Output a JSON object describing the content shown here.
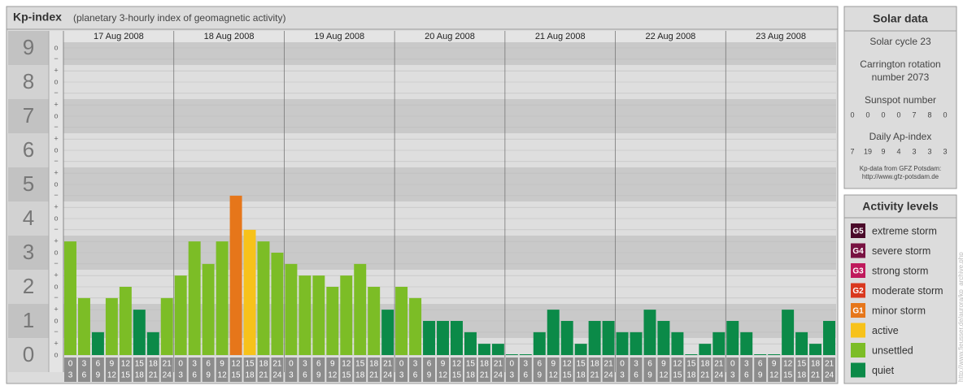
{
  "chart_data": {
    "type": "bar",
    "title": "Kp-index",
    "subtitle": "(planetary 3-hourly index of geomagnetic activity)",
    "days": [
      "17 Aug 2008",
      "18 Aug 2008",
      "19 Aug 2008",
      "20 Aug 2008",
      "21 Aug 2008",
      "22 Aug 2008",
      "23 Aug 2008"
    ],
    "slots": [
      {
        "from": "0",
        "to": "3"
      },
      {
        "from": "3",
        "to": "6"
      },
      {
        "from": "6",
        "to": "9"
      },
      {
        "from": "9",
        "to": "12"
      },
      {
        "from": "12",
        "to": "15"
      },
      {
        "from": "15",
        "to": "18"
      },
      {
        "from": "18",
        "to": "21"
      },
      {
        "from": "21",
        "to": "24"
      }
    ],
    "values": [
      3.33,
      1.67,
      0.67,
      1.67,
      2,
      1.33,
      0.67,
      1.67,
      2.33,
      3.33,
      2.67,
      3.33,
      4.67,
      3.67,
      3.33,
      3,
      2.67,
      2.33,
      2.33,
      2,
      2.33,
      2.67,
      2,
      1.33,
      2,
      1.67,
      1,
      1,
      1,
      0.67,
      0.33,
      0.33,
      0,
      0,
      0.67,
      1.33,
      1,
      0.33,
      1,
      1,
      0.67,
      0.67,
      1.33,
      1,
      0.67,
      0,
      0.33,
      0.67,
      1,
      0.67,
      0,
      0,
      1.33,
      0.67,
      0.33,
      1
    ],
    "colors": [
      "#7cbd26",
      "#7cbd26",
      "#0b8a48",
      "#7cbd26",
      "#7cbd26",
      "#0b8a48",
      "#0b8a48",
      "#7cbd26",
      "#7cbd26",
      "#7cbd26",
      "#7cbd26",
      "#7cbd26",
      "#e6761a",
      "#f7c21a",
      "#7cbd26",
      "#7cbd26",
      "#7cbd26",
      "#7cbd26",
      "#7cbd26",
      "#7cbd26",
      "#7cbd26",
      "#7cbd26",
      "#7cbd26",
      "#0b8a48",
      "#7cbd26",
      "#7cbd26",
      "#0b8a48",
      "#0b8a48",
      "#0b8a48",
      "#0b8a48",
      "#0b8a48",
      "#0b8a48",
      "#0b8a48",
      "#0b8a48",
      "#0b8a48",
      "#0b8a48",
      "#0b8a48",
      "#0b8a48",
      "#0b8a48",
      "#0b8a48",
      "#0b8a48",
      "#0b8a48",
      "#0b8a48",
      "#0b8a48",
      "#0b8a48",
      "#0b8a48",
      "#0b8a48",
      "#0b8a48",
      "#0b8a48",
      "#0b8a48",
      "#0b8a48",
      "#0b8a48",
      "#0b8a48",
      "#0b8a48",
      "#0b8a48",
      "#0b8a48"
    ],
    "ylim": [
      -0.5,
      9.5
    ],
    "yticks": [
      0,
      1,
      2,
      3,
      4,
      5,
      6,
      7,
      8,
      9
    ],
    "minor_yticks": [
      {
        "value": 0,
        "label": "o"
      },
      {
        "value": 0.33,
        "label": "+"
      },
      {
        "value": 0.67,
        "label": "−"
      },
      {
        "value": 1,
        "label": "o"
      },
      {
        "value": 1.33,
        "label": "+"
      },
      {
        "value": 1.67,
        "label": "−"
      },
      {
        "value": 2,
        "label": "o"
      },
      {
        "value": 2.33,
        "label": "+"
      },
      {
        "value": 2.67,
        "label": "−"
      },
      {
        "value": 3,
        "label": "o"
      },
      {
        "value": 3.33,
        "label": "+"
      },
      {
        "value": 3.67,
        "label": "−"
      },
      {
        "value": 4,
        "label": "o"
      },
      {
        "value": 4.33,
        "label": "+"
      },
      {
        "value": 4.67,
        "label": "−"
      },
      {
        "value": 5,
        "label": "o"
      },
      {
        "value": 5.33,
        "label": "+"
      },
      {
        "value": 5.67,
        "label": "−"
      },
      {
        "value": 6,
        "label": "o"
      },
      {
        "value": 6.33,
        "label": "+"
      },
      {
        "value": 6.67,
        "label": "−"
      },
      {
        "value": 7,
        "label": "o"
      },
      {
        "value": 7.33,
        "label": "+"
      },
      {
        "value": 7.67,
        "label": "−"
      },
      {
        "value": 8,
        "label": "o"
      },
      {
        "value": 8.33,
        "label": "+"
      },
      {
        "value": 8.67,
        "label": "−"
      },
      {
        "value": 9,
        "label": "o"
      }
    ],
    "grid": true
  },
  "solar_data": {
    "title": "Solar data",
    "solar_cycle": "Solar cycle 23",
    "carrington": [
      "Carrington rotation",
      "number 2073"
    ],
    "sunspot_title": "Sunspot number",
    "sunspot_numbers": [
      0,
      0,
      0,
      0,
      7,
      8,
      0
    ],
    "ap_title": "Daily Ap-index",
    "ap_values": [
      7,
      19,
      9,
      4,
      3,
      3,
      3
    ],
    "credit": [
      "Kp-data from GFZ Potsdam:",
      "http://www.gfz-potsdam.de"
    ]
  },
  "activity_levels": {
    "title": "Activity levels",
    "items": [
      {
        "code": "G5",
        "label": "extreme storm",
        "color": "#4a0a2a"
      },
      {
        "code": "G4",
        "label": "severe storm",
        "color": "#781242"
      },
      {
        "code": "G3",
        "label": "strong storm",
        "color": "#bf1a5c"
      },
      {
        "code": "G2",
        "label": "moderate storm",
        "color": "#d9381e"
      },
      {
        "code": "G1",
        "label": "minor storm",
        "color": "#e6761a"
      },
      {
        "code": null,
        "label": "active",
        "color": "#f7c21a"
      },
      {
        "code": null,
        "label": "unsettled",
        "color": "#7cbd26"
      },
      {
        "code": null,
        "label": "quiet",
        "color": "#0b8a48"
      }
    ]
  },
  "watermark": "http://www.fieusser.de/aurora/kp_archive.php"
}
